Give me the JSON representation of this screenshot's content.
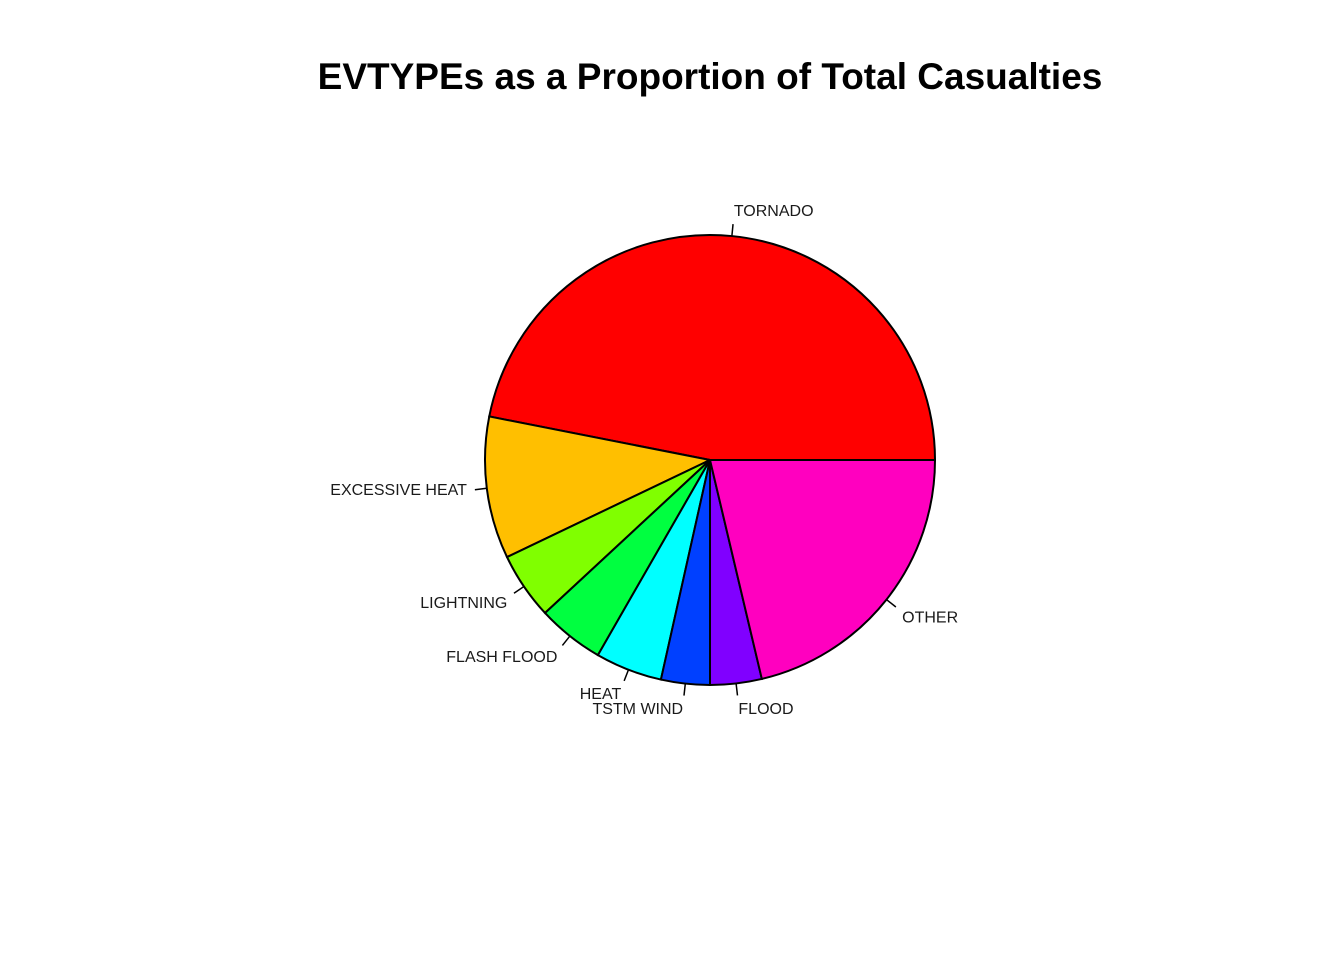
{
  "chart_data": {
    "type": "pie",
    "title": "EVTYPEs as a Proportion of Total Casualties",
    "categories": [
      "TORNADO",
      "EXCESSIVE HEAT",
      "LIGHTNING",
      "FLASH FLOOD",
      "HEAT",
      "TSTM WIND",
      "FLOOD",
      "OTHER"
    ],
    "values": [
      0.469,
      0.102,
      0.048,
      0.048,
      0.048,
      0.035,
      0.037,
      0.213
    ],
    "colors": [
      "#FF0000",
      "#FFBF00",
      "#80FF00",
      "#00FF40",
      "#00FFFF",
      "#0040FF",
      "#8000FF",
      "#FF00BF"
    ],
    "start_angle_deg": 0,
    "direction": "counterclockwise",
    "legend": "none"
  }
}
